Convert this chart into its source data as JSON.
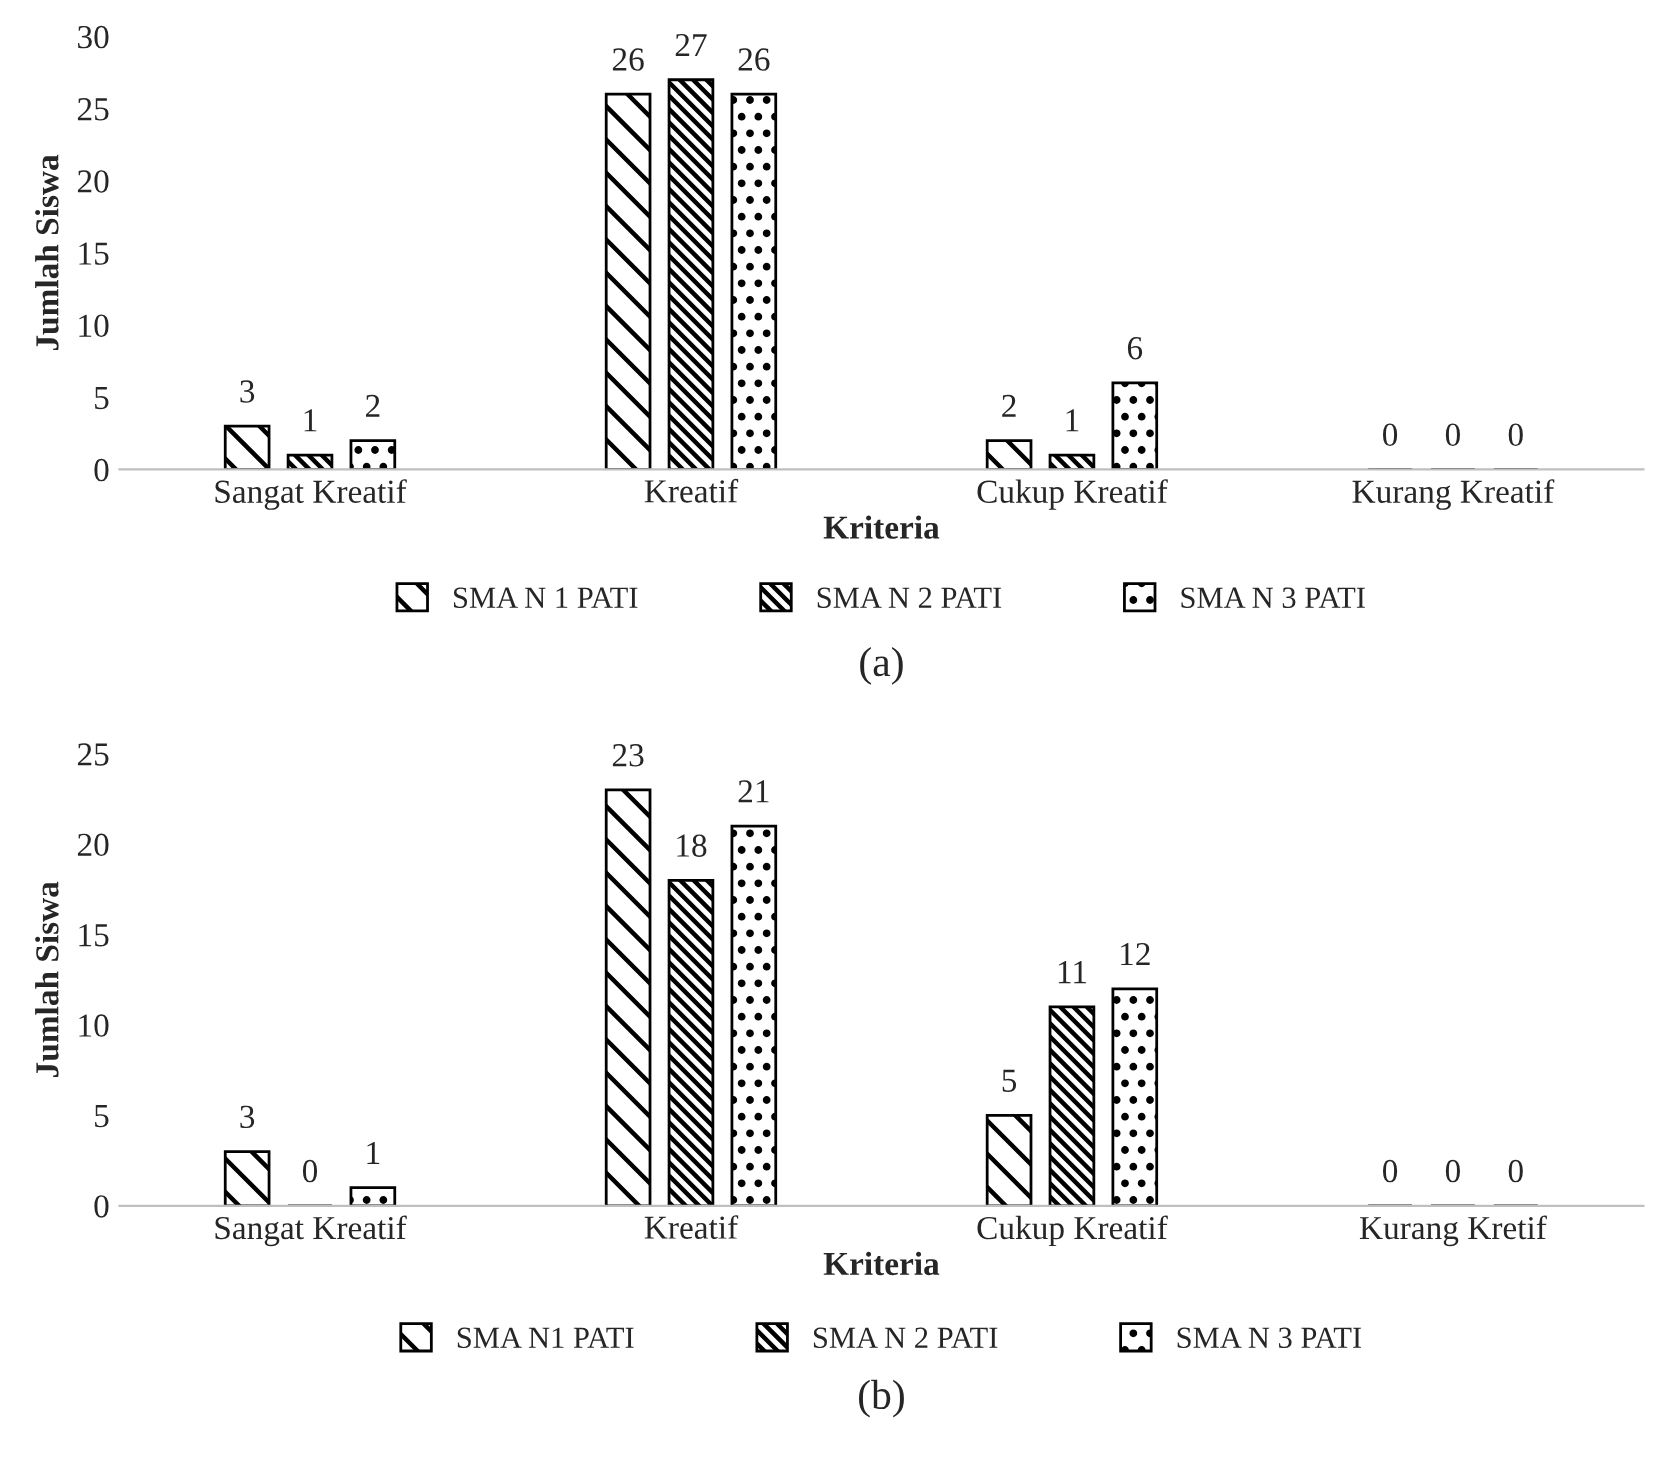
{
  "chart_data": [
    {
      "type": "bar",
      "categories": [
        "Sangat Kreatif",
        "Kreatif",
        "Cukup Kreatif",
        "Kurang Kreatif"
      ],
      "xlabel": "Kriteria",
      "ylabel": "Jumlah Siswa",
      "series": [
        {
          "name": "SMA N 1 PATI",
          "color": "#000000",
          "values": [
            3,
            26,
            2,
            0
          ]
        },
        {
          "name": "SMA N 2 PATI",
          "color": "#000000",
          "values": [
            1,
            27,
            1,
            0
          ]
        },
        {
          "name": "SMA N 3 PATI",
          "color": "#000000",
          "values": [
            2,
            26,
            6,
            0
          ]
        }
      ],
      "ylim": [
        0,
        30
      ],
      "yticks": [
        0,
        5,
        10,
        15,
        20,
        25,
        30
      ],
      "data_labels": true,
      "legend": "bottom",
      "grid": false,
      "annotations": [
        "(a)"
      ]
    },
    {
      "type": "bar",
      "categories": [
        "Sangat Kreatif",
        "Kreatif",
        "Cukup Kreatif",
        "Kurang Kretif"
      ],
      "xlabel": "Kriteria",
      "ylabel": "Jumlah Siswa",
      "series": [
        {
          "name": "SMA N1 PATI",
          "color": "#000000",
          "values": [
            3,
            23,
            5,
            0
          ]
        },
        {
          "name": "SMA N 2 PATI",
          "color": "#000000",
          "values": [
            0,
            18,
            11,
            0
          ]
        },
        {
          "name": "SMA N 3 PATI",
          "color": "#000000",
          "values": [
            1,
            21,
            12,
            0
          ]
        }
      ],
      "ylim": [
        0,
        25
      ],
      "yticks": [
        0,
        5,
        10,
        15,
        20,
        25
      ],
      "data_labels": true,
      "legend": "bottom",
      "grid": false,
      "annotations": [
        "(b)"
      ]
    }
  ]
}
